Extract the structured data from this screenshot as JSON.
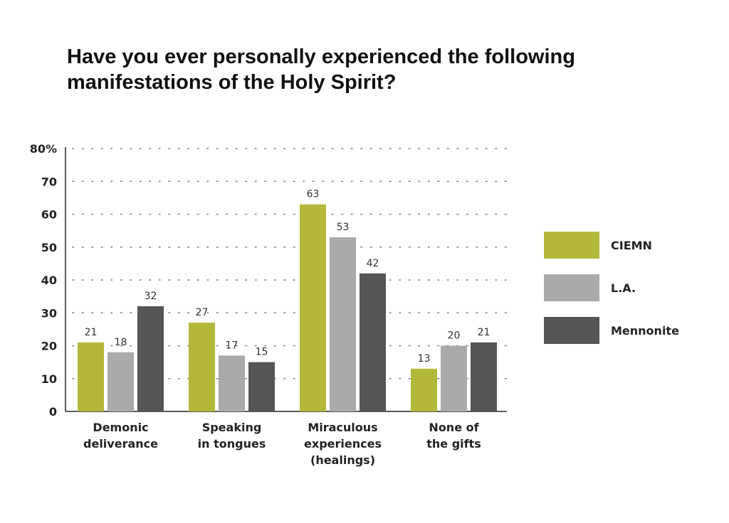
{
  "chart_data": {
    "type": "bar",
    "title_lines": [
      "Have you ever personally experienced the following",
      "manifestations of the Holy Spirit?"
    ],
    "categories": [
      [
        "Demonic",
        "deliverance"
      ],
      [
        "Speaking",
        "in tongues"
      ],
      [
        "Miraculous",
        "experiences",
        "(healings)"
      ],
      [
        "None of",
        "the gifts"
      ]
    ],
    "series": [
      {
        "name": "CIEMN",
        "color": "#b3b83a",
        "values": [
          21,
          27,
          63,
          13
        ]
      },
      {
        "name": "L.A.",
        "color": "#aaaaaa",
        "values": [
          18,
          17,
          53,
          20
        ]
      },
      {
        "name": "Mennonite",
        "color": "#555555",
        "values": [
          32,
          15,
          42,
          21
        ]
      }
    ],
    "yticks": [
      "0",
      "10",
      "20",
      "30",
      "40",
      "50",
      "60",
      "70",
      "80%"
    ],
    "ylim": [
      0,
      80
    ],
    "grid": "dotted",
    "legend_position": "right"
  }
}
